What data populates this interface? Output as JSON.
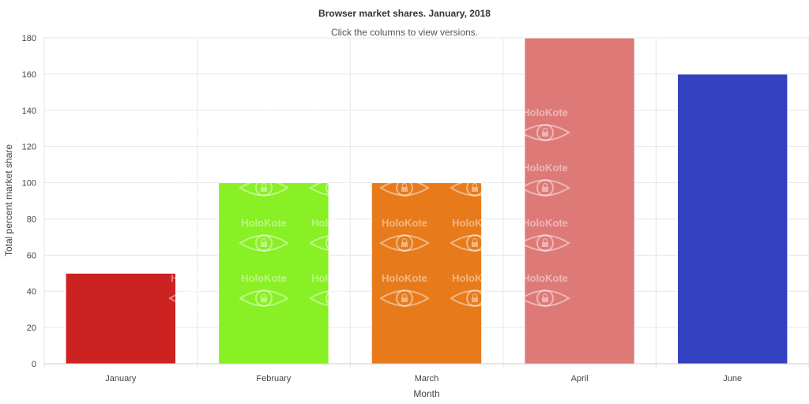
{
  "chart_data": {
    "type": "bar",
    "title": "Browser market shares. January, 2018",
    "subtitle": "Click the columns to view versions.",
    "xlabel": "Month",
    "ylabel": "Total percent market share",
    "categories": [
      "January",
      "February",
      "March",
      "April",
      "June"
    ],
    "values": [
      50,
      100,
      100,
      180,
      160
    ],
    "colors": [
      "#cc2222",
      "#88f024",
      "#e77b1c",
      "#dd7a78",
      "#3340c0"
    ],
    "ylim": [
      0,
      180
    ],
    "yticks": [
      0,
      20,
      40,
      60,
      80,
      100,
      120,
      140,
      160,
      180
    ],
    "grid": true,
    "legend": "none"
  },
  "watermark": {
    "text": "HoloKote",
    "icon": "eye-lock-icon"
  }
}
